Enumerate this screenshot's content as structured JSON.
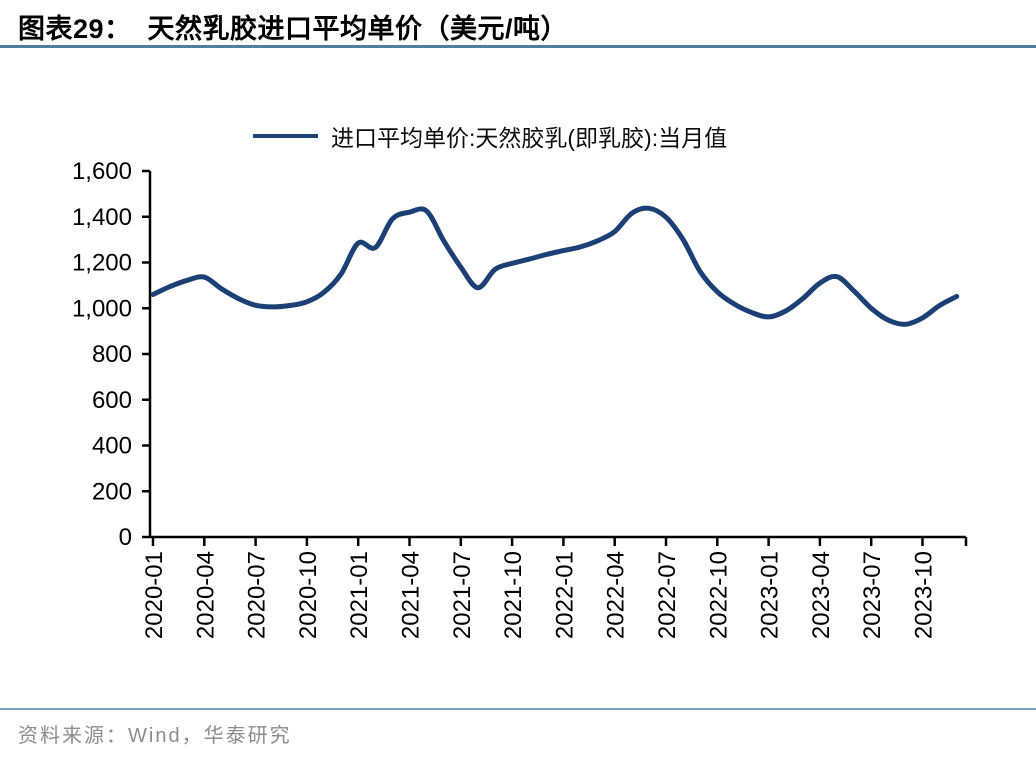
{
  "header": {
    "figure_label": "图表29：",
    "title": "天然乳胶进口平均单价（美元/吨）"
  },
  "legend": {
    "label": "进口平均单价:天然胶乳(即乳胶):当月值"
  },
  "footer": {
    "source": "资料来源：Wind，华泰研究"
  },
  "colors": {
    "line": "#1b4075",
    "header_rule": "#4e7f9e",
    "footer_rule": "#7aa0bc",
    "footer_text": "#8c8c8c",
    "axis": "#000000"
  },
  "chart_data": {
    "type": "line",
    "title": "天然乳胶进口平均单价（美元/吨）",
    "xlabel": "",
    "ylabel": "",
    "ylim": [
      0,
      1600
    ],
    "ytick_step": 200,
    "ytick_labels": [
      "0",
      "200",
      "400",
      "600",
      "800",
      "1,000",
      "1,200",
      "1,400",
      "1,600"
    ],
    "xtick_labels": [
      "2020-01",
      "2020-04",
      "2020-07",
      "2020-10",
      "2021-01",
      "2021-04",
      "2021-07",
      "2021-10",
      "2022-01",
      "2022-04",
      "2022-07",
      "2022-10",
      "2023-01",
      "2023-04",
      "2023-07",
      "2023-10"
    ],
    "grid": false,
    "legend_position": "top",
    "series": [
      {
        "name": "进口平均单价:天然胶乳(即乳胶):当月值",
        "color": "#1b4075",
        "x": [
          "2020-01",
          "2020-02",
          "2020-03",
          "2020-04",
          "2020-05",
          "2020-06",
          "2020-07",
          "2020-08",
          "2020-09",
          "2020-10",
          "2020-11",
          "2020-12",
          "2021-01",
          "2021-02",
          "2021-03",
          "2021-04",
          "2021-05",
          "2021-06",
          "2021-07",
          "2021-08",
          "2021-09",
          "2021-10",
          "2021-11",
          "2021-12",
          "2022-01",
          "2022-02",
          "2022-03",
          "2022-04",
          "2022-05",
          "2022-06",
          "2022-07",
          "2022-08",
          "2022-09",
          "2022-10",
          "2022-11",
          "2022-12",
          "2023-01",
          "2023-02",
          "2023-03",
          "2023-04",
          "2023-05",
          "2023-06",
          "2023-07",
          "2023-08",
          "2023-09",
          "2023-10",
          "2023-11",
          "2023-12"
        ],
        "values": [
          1060,
          1095,
          1122,
          1136,
          1085,
          1042,
          1013,
          1006,
          1012,
          1028,
          1070,
          1150,
          1285,
          1265,
          1390,
          1420,
          1425,
          1295,
          1180,
          1090,
          1170,
          1196,
          1215,
          1235,
          1252,
          1268,
          1295,
          1335,
          1415,
          1437,
          1398,
          1300,
          1160,
          1072,
          1018,
          982,
          962,
          988,
          1042,
          1110,
          1138,
          1075,
          1000,
          948,
          930,
          958,
          1012,
          1052
        ]
      }
    ]
  }
}
